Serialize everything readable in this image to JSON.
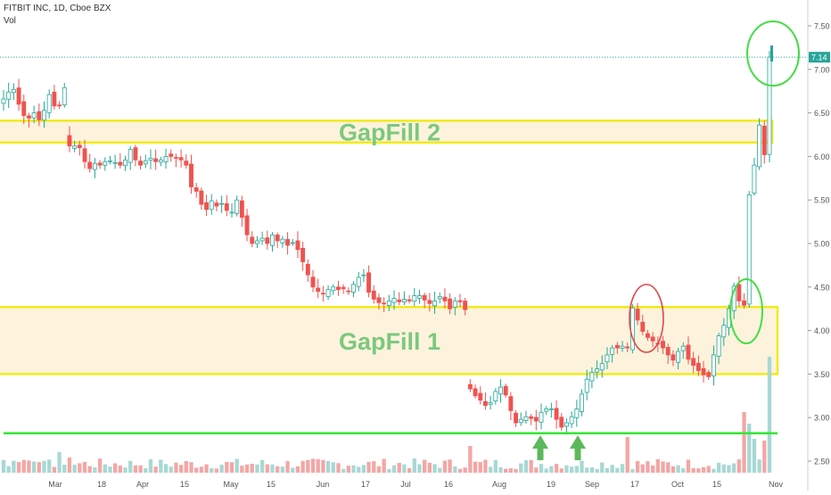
{
  "header": {
    "title": "FITBIT INC, 1D, Cboe BZX",
    "vol_label": "Vol"
  },
  "price_tag": "7.14",
  "zone_labels": {
    "gapfill_1": "GapFill 1",
    "gapfill_2": "GapFill 2"
  },
  "colors": {
    "up": "#26a69a",
    "down": "#ef5350",
    "zone_fill": "#fdf3dd",
    "zone_border": "#f2ea1a",
    "zone_text": "#7cc87f",
    "support_line": "#33e633",
    "arrow": "#5cb85c",
    "green_circle": "#44dd44",
    "red_circle": "#e04848",
    "price_tag_bg": "#26a69a"
  },
  "chart_data": {
    "type": "candlestick",
    "title": "FITBIT INC, 1D, Cboe BZX",
    "y_axis": {
      "ylim": [
        2.37,
        7.72
      ],
      "ticks": [
        "7.50",
        "7.00",
        "6.50",
        "6.00",
        "5.50",
        "5.00",
        "4.50",
        "4.00",
        "3.50",
        "3.00",
        "2.50"
      ],
      "position": "right"
    },
    "x_axis": {
      "labels": [
        "Mar",
        "18",
        "Apr",
        "15",
        "May",
        "15",
        "Jun",
        "17",
        "Jul",
        "16",
        "Aug",
        "19",
        "Sep",
        "17",
        "Oct",
        "15",
        "Nov"
      ]
    },
    "current_price": 7.14,
    "zones": [
      {
        "label": "GapFill 2",
        "low": 6.16,
        "high": 6.41
      },
      {
        "label": "GapFill 1",
        "low": 3.5,
        "high": 4.27
      }
    ],
    "support_line": 2.82,
    "closes": [
      6.66,
      6.74,
      6.77,
      6.6,
      6.47,
      6.44,
      6.5,
      6.42,
      6.53,
      6.71,
      6.58,
      6.59,
      6.79,
      6.12,
      6.12,
      6.1,
      5.94,
      5.86,
      5.92,
      5.9,
      5.94,
      5.95,
      5.93,
      5.9,
      5.96,
      6.08,
      5.96,
      5.9,
      5.95,
      5.98,
      5.94,
      5.96,
      6,
      6,
      5.98,
      5.96,
      5.9,
      5.65,
      5.6,
      5.45,
      5.39,
      5.49,
      5.43,
      5.46,
      5.38,
      5.36,
      5.5,
      5.3,
      5.1,
      5,
      5.03,
      5.06,
      5,
      5.1,
      5.03,
      5.05,
      4.98,
      5.01,
      4.93,
      4.79,
      4.64,
      4.5,
      4.45,
      4.42,
      4.47,
      4.5,
      4.47,
      4.48,
      4.45,
      4.53,
      4.61,
      4.64,
      4.44,
      4.36,
      4.32,
      4.31,
      4.34,
      4.37,
      4.33,
      4.36,
      4.34,
      4.4,
      4.4,
      4.35,
      4.31,
      4.34,
      4.39,
      4.34,
      4.25,
      4.34,
      4.33,
      4.24,
      3.33,
      3.25,
      3.2,
      3.14,
      3.17,
      3.3,
      3.35,
      3.26,
      3.08,
      2.94,
      2.98,
      3.01,
      2.99,
      2.96,
      3.06,
      3.1,
      3.1,
      2.98,
      2.89,
      2.94,
      3.01,
      3.1,
      3.27,
      3.44,
      3.52,
      3.56,
      3.62,
      3.72,
      3.8,
      3.8,
      3.82,
      3.8,
      4.26,
      4.12,
      3.99,
      3.92,
      3.88,
      3.85,
      3.8,
      3.72,
      3.66,
      3.76,
      3.82,
      3.67,
      3.6,
      3.54,
      3.49,
      3.47,
      3.72,
      3.94,
      4.06,
      4.25,
      4.51,
      4.34,
      4.29,
      5.56,
      5.9,
      6.36,
      6.02,
      7.14
    ],
    "ohlc_note": "price series estimated from candles",
    "volume_spikes": [
      {
        "date": "Aug",
        "relative": 0.3
      },
      {
        "date": "late Oct",
        "relative": 1.0
      },
      {
        "date": "Nov",
        "relative": 0.55
      }
    ]
  },
  "annotations": {
    "circles": [
      "green-top",
      "red-september",
      "green-october"
    ],
    "arrows": 2
  }
}
